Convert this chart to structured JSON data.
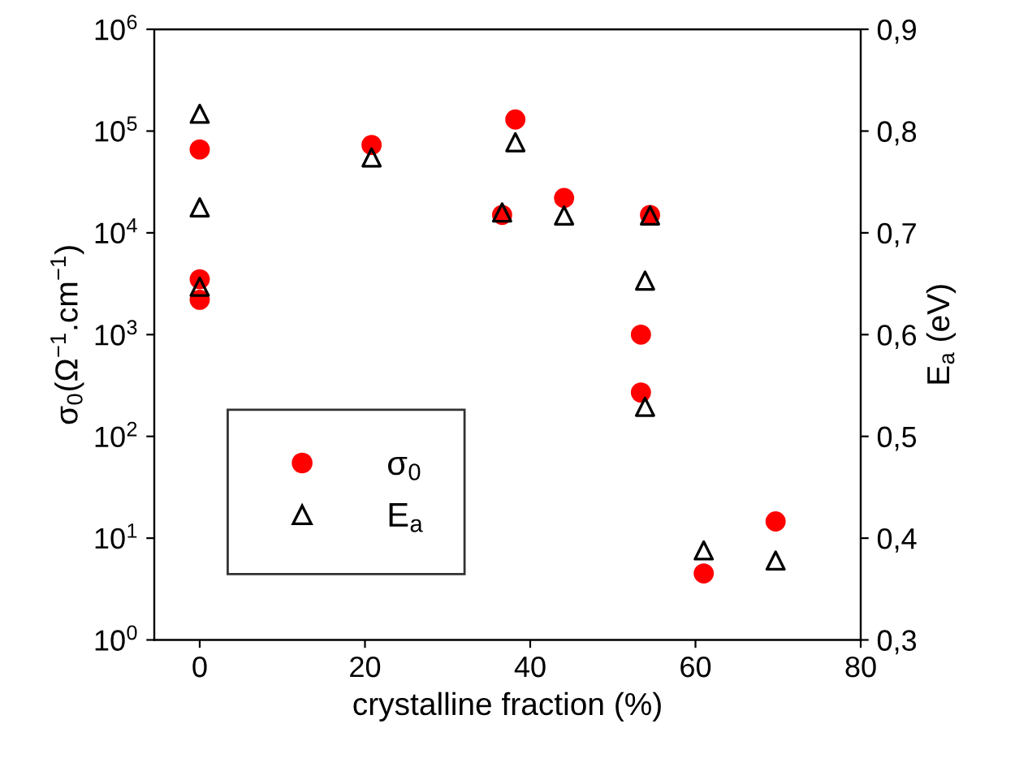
{
  "chart_data": {
    "type": "scatter",
    "xlabel": "crystalline fraction (%)",
    "ylabel": "σ$_{0}$(Ω$^{−1}$.cm$^{−1}$)",
    "y2label": "E$_{a}$ (eV)",
    "series": [
      {
        "name": "σ$_{0}$",
        "color": "#ff0000",
        "marker": "circle",
        "x": [
          0,
          0,
          0,
          20.8,
          38.2,
          36.6,
          44.1,
          54.5,
          53.4,
          53.4,
          61,
          69.7
        ],
        "values": [
          66000,
          3500,
          2200,
          73000,
          130000,
          15000,
          22000,
          15000,
          1000,
          270,
          4.5,
          14.6
        ]
      },
      {
        "name": "E$_{a}$",
        "color": "#000000",
        "marker": "triangle",
        "axis": "y2",
        "x": [
          0,
          0,
          0,
          20.8,
          38.2,
          36.6,
          44.1,
          54.5,
          53.9,
          53.9,
          61,
          69.7
        ],
        "values": [
          0.817,
          0.725,
          0.647,
          0.774,
          0.789,
          0.72,
          0.717,
          0.717,
          0.653,
          0.529,
          0.388,
          0.378
        ]
      }
    ],
    "log": "y",
    "xlim": [
      -5.5,
      80
    ],
    "xticks": [
      0,
      20,
      40,
      60,
      80
    ],
    "ylim": [
      1,
      1000000
    ],
    "yticks": [
      {
        "value": 1,
        "label": "10$^{0}$"
      },
      {
        "value": 10,
        "label": "10$^{1}$"
      },
      {
        "value": 100,
        "label": "10$^{2}$"
      },
      {
        "value": 1000,
        "label": "10$^{3}$"
      },
      {
        "value": 10000,
        "label": "10$^{4}$"
      },
      {
        "value": 100000,
        "label": "10$^{5}$"
      },
      {
        "value": 1000000,
        "label": "10$^{6}$"
      }
    ],
    "y2lim": [
      0.3,
      0.9
    ],
    "y2ticks": [
      {
        "value": 0.3,
        "label": "0,3"
      },
      {
        "value": 0.4,
        "label": "0,4"
      },
      {
        "value": 0.5,
        "label": "0,5"
      },
      {
        "value": 0.6,
        "label": "0,6"
      },
      {
        "value": 0.7,
        "label": "0,7"
      },
      {
        "value": 0.8,
        "label": "0,8"
      },
      {
        "value": 0.9,
        "label": "0,9"
      }
    ],
    "grid": false,
    "legend": "bottom left"
  }
}
